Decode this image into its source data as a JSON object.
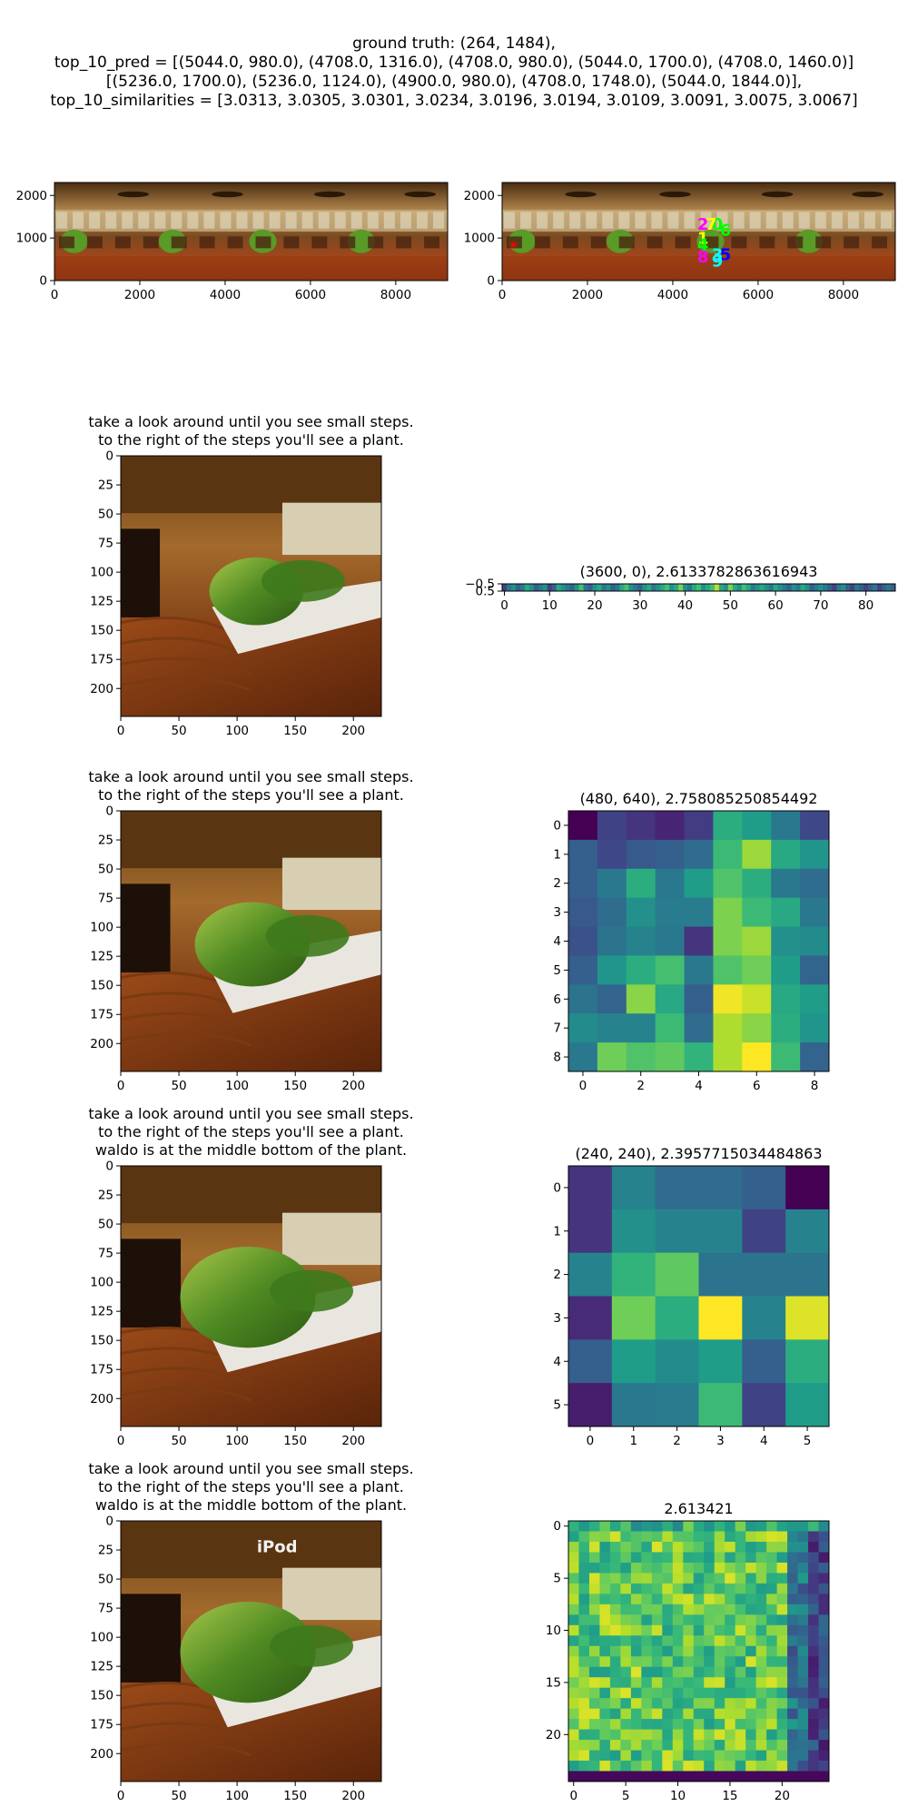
{
  "suptitle": {
    "line1": "ground truth: (264, 1484),",
    "line2": "top_10_pred = [(5044.0, 980.0), (4708.0, 1316.0), (4708.0, 980.0), (5044.0, 1700.0), (4708.0, 1460.0)]",
    "line3": "[(5236.0, 1700.0), (5236.0, 1124.0), (4900.0, 980.0), (4708.0, 1748.0), (5044.0, 1844.0)],",
    "line4": "top_10_similarities = [3.0313, 3.0305, 3.0301, 3.0234, 3.0196, 3.0194, 3.0109, 3.0091, 3.0075, 3.0067]"
  },
  "colors": {
    "marker_gt": "#ff0000",
    "marker_palette": [
      "#00ff00",
      "#ffff00",
      "#ff00ff",
      "#00ffff",
      "#00ff00",
      "#0000ff",
      "#00ff00",
      "#ffff00",
      "#ff00ff",
      "#00ffff"
    ],
    "viridis": [
      "#440154",
      "#482878",
      "#3e4989",
      "#31688e",
      "#26828e",
      "#1f9e89",
      "#35b779",
      "#6ece58",
      "#b5de2b",
      "#fde725"
    ]
  },
  "captions": {
    "line_a": "take a look around until you see small steps.",
    "line_b": "to the right of the steps you'll see a plant.",
    "line_c": "waldo is at the middle bottom of the plant.",
    "ipod_label": "iPod"
  },
  "chart_data": [
    {
      "type": "image",
      "panel": "panorama",
      "xlim": [
        0,
        9216
      ],
      "ylim": [
        2304,
        0
      ],
      "xticks": [
        "0",
        "2000",
        "4000",
        "6000",
        "8000"
      ],
      "yticks": [
        "0",
        "1000",
        "2000"
      ]
    },
    {
      "type": "scatter",
      "panel": "panorama-with-predictions",
      "xlim": [
        0,
        9216
      ],
      "ylim": [
        2304,
        0
      ],
      "xticks": [
        "0",
        "2000",
        "4000",
        "6000",
        "8000"
      ],
      "yticks": [
        "0",
        "1000",
        "2000"
      ],
      "ground_truth": {
        "x": 264,
        "y": 1484,
        "label": "*"
      },
      "predictions": [
        {
          "label": "0",
          "x": 5044,
          "y": 980
        },
        {
          "label": "1",
          "x": 4708,
          "y": 1316
        },
        {
          "label": "2",
          "x": 4708,
          "y": 980
        },
        {
          "label": "3",
          "x": 5044,
          "y": 1700
        },
        {
          "label": "4",
          "x": 4708,
          "y": 1460
        },
        {
          "label": "5",
          "x": 5236,
          "y": 1700
        },
        {
          "label": "6",
          "x": 5236,
          "y": 1124
        },
        {
          "label": "7",
          "x": 4900,
          "y": 980
        },
        {
          "label": "8",
          "x": 4708,
          "y": 1748
        },
        {
          "label": "9",
          "x": 5044,
          "y": 1844
        }
      ]
    },
    {
      "type": "image",
      "panel": "view-1",
      "xticks": [
        "0",
        "50",
        "100",
        "150",
        "200"
      ],
      "yticks": [
        "0",
        "25",
        "50",
        "75",
        "100",
        "125",
        "150",
        "175",
        "200"
      ]
    },
    {
      "type": "heatmap",
      "panel": "heatmap-1",
      "title": "(3600, 0), 2.6133782863616943",
      "xticks": [
        "0",
        "10",
        "20",
        "30",
        "40",
        "50",
        "60",
        "70",
        "80"
      ],
      "yticks": [
        "−0.5",
        "0.5"
      ],
      "rows": 1,
      "cols": 87,
      "values": [
        [
          0.2,
          0.4,
          0.5,
          0.3,
          0.4,
          0.6,
          0.5,
          0.3,
          0.4,
          0.5,
          0.2,
          0.3,
          0.6,
          0.5,
          0.4,
          0.3,
          0.5,
          0.7,
          0.4,
          0.3,
          0.5,
          0.6,
          0.4,
          0.5,
          0.3,
          0.4,
          0.6,
          0.7,
          0.5,
          0.4,
          0.3,
          0.5,
          0.6,
          0.4,
          0.5,
          0.6,
          0.7,
          0.5,
          0.6,
          0.8,
          0.5,
          0.4,
          0.6,
          0.7,
          0.5,
          0.6,
          0.7,
          0.9,
          0.6,
          0.5,
          0.8,
          0.6,
          0.5,
          0.7,
          0.6,
          0.4,
          0.5,
          0.6,
          0.5,
          0.4,
          0.6,
          0.5,
          0.4,
          0.3,
          0.5,
          0.4,
          0.6,
          0.5,
          0.3,
          0.4,
          0.5,
          0.4,
          0.3,
          0.2,
          0.4,
          0.5,
          0.3,
          0.2,
          0.4,
          0.3,
          0.2,
          0.3,
          0.4,
          0.2,
          0.3,
          0.4,
          0.3
        ]
      ]
    },
    {
      "type": "image",
      "panel": "view-2",
      "xticks": [
        "0",
        "50",
        "100",
        "150",
        "200"
      ],
      "yticks": [
        "0",
        "25",
        "50",
        "75",
        "100",
        "125",
        "150",
        "175",
        "200"
      ]
    },
    {
      "type": "heatmap",
      "panel": "heatmap-2",
      "title": "(480, 640), 2.758085250854492",
      "xticks": [
        "0",
        "2",
        "4",
        "6",
        "8"
      ],
      "yticks": [
        "0",
        "1",
        "2",
        "3",
        "4",
        "5",
        "6",
        "7",
        "8"
      ],
      "rows": 9,
      "cols": 9,
      "values": [
        [
          0.0,
          0.2,
          0.15,
          0.1,
          0.18,
          0.62,
          0.55,
          0.4,
          0.22
        ],
        [
          0.3,
          0.22,
          0.28,
          0.3,
          0.35,
          0.68,
          0.85,
          0.6,
          0.52
        ],
        [
          0.3,
          0.4,
          0.62,
          0.4,
          0.55,
          0.72,
          0.62,
          0.4,
          0.35
        ],
        [
          0.28,
          0.35,
          0.5,
          0.42,
          0.42,
          0.8,
          0.68,
          0.6,
          0.4
        ],
        [
          0.25,
          0.38,
          0.45,
          0.4,
          0.15,
          0.8,
          0.85,
          0.5,
          0.48
        ],
        [
          0.3,
          0.52,
          0.62,
          0.7,
          0.4,
          0.72,
          0.78,
          0.55,
          0.32
        ],
        [
          0.38,
          0.32,
          0.82,
          0.6,
          0.3,
          0.98,
          0.92,
          0.6,
          0.55
        ],
        [
          0.48,
          0.45,
          0.45,
          0.68,
          0.35,
          0.88,
          0.82,
          0.62,
          0.52
        ],
        [
          0.4,
          0.78,
          0.72,
          0.75,
          0.65,
          0.88,
          1.0,
          0.68,
          0.32
        ]
      ]
    },
    {
      "type": "image",
      "panel": "view-3",
      "xticks": [
        "0",
        "50",
        "100",
        "150",
        "200"
      ],
      "yticks": [
        "0",
        "25",
        "50",
        "75",
        "100",
        "125",
        "150",
        "175",
        "200"
      ]
    },
    {
      "type": "heatmap",
      "panel": "heatmap-3",
      "title": "(240, 240), 2.3957715034484863",
      "xticks": [
        "0",
        "1",
        "2",
        "3",
        "4",
        "5"
      ],
      "yticks": [
        "0",
        "1",
        "2",
        "3",
        "4",
        "5"
      ],
      "rows": 6,
      "cols": 6,
      "values": [
        [
          0.15,
          0.45,
          0.35,
          0.35,
          0.3,
          0.0
        ],
        [
          0.15,
          0.5,
          0.45,
          0.45,
          0.2,
          0.45
        ],
        [
          0.45,
          0.65,
          0.75,
          0.38,
          0.38,
          0.38
        ],
        [
          0.12,
          0.78,
          0.62,
          1.0,
          0.45,
          0.95
        ],
        [
          0.3,
          0.55,
          0.48,
          0.55,
          0.3,
          0.62
        ],
        [
          0.08,
          0.4,
          0.42,
          0.68,
          0.2,
          0.55
        ]
      ]
    },
    {
      "type": "image",
      "panel": "view-4",
      "xticks": [
        "0",
        "50",
        "100",
        "150",
        "200"
      ],
      "yticks": [
        "0",
        "25",
        "50",
        "75",
        "100",
        "125",
        "150",
        "175",
        "200"
      ]
    },
    {
      "type": "heatmap",
      "panel": "heatmap-4",
      "title": "2.613421",
      "xticks": [
        "0",
        "5",
        "10",
        "15",
        "20"
      ],
      "yticks": [
        "0",
        "5",
        "10",
        "15",
        "20"
      ],
      "rows": 25,
      "cols": 25
    }
  ]
}
